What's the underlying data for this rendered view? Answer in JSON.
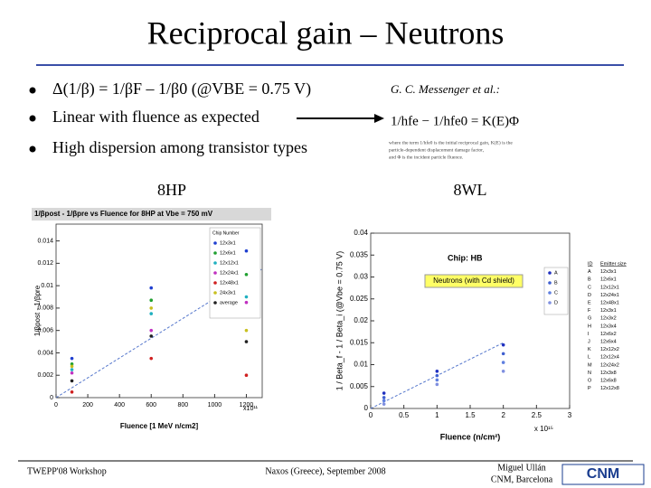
{
  "header": {
    "title": "Reciprocal gain – Neutrons"
  },
  "bullets": [
    "Δ(1/β) = 1/βF – 1/β0  (@VBE = 0.75 V)",
    "Linear with fluence as expected",
    "High dispersion among transistor types"
  ],
  "citation": {
    "author": "G. C. Messenger et al.:",
    "formula": "1/hfe − 1/hfe0 = K(E)Φ",
    "caption": [
      "where the term 1/hfe0 is the initial reciprocal gain, K(E) is the",
      "particle-dependent displacement damage factor,",
      "and Φ is the incident particle fluence."
    ]
  },
  "panel_labels": [
    "8HP",
    "8WL"
  ],
  "chart_data": [
    {
      "type": "scatter",
      "title": "1/βpost - 1/βpre vs Fluence for 8HP at Vbe = 750 mV",
      "xlabel": "Fluence [1 MeV n/cm2]",
      "ylabel": "1/βpost - 1/βpre",
      "x_exponent": "x10¹¹",
      "xlim": [
        0,
        1300
      ],
      "ylim": [
        0,
        0.0155
      ],
      "xticks": [
        0,
        200,
        400,
        600,
        800,
        1000,
        1200
      ],
      "yticks": [
        0,
        0.002,
        0.004,
        0.006,
        0.008,
        0.01,
        0.012,
        0.014
      ],
      "legend_title": "Chip Number",
      "series": [
        {
          "name": "12x3x1",
          "color": "#1f3fd0",
          "x": [
            100,
            600,
            1200
          ],
          "values": [
            0.0035,
            0.0098,
            0.0131
          ]
        },
        {
          "name": "12x6x1",
          "color": "#20a030",
          "x": [
            100,
            600,
            1200
          ],
          "values": [
            0.003,
            0.0087,
            0.011
          ]
        },
        {
          "name": "12x12x1",
          "color": "#20b0c0",
          "x": [
            100,
            600,
            1200
          ],
          "values": [
            0.0025,
            0.0075,
            0.009
          ]
        },
        {
          "name": "12x24x1",
          "color": "#c030c0",
          "x": [
            100,
            600,
            1200
          ],
          "values": [
            0.0022,
            0.006,
            0.0085
          ]
        },
        {
          "name": "12x48x1",
          "color": "#d02020",
          "x": [
            100,
            600,
            1200
          ],
          "values": [
            0.0005,
            0.0035,
            0.002
          ]
        },
        {
          "name": "24x3x1",
          "color": "#c8c020",
          "x": [
            100,
            600,
            1200
          ],
          "values": [
            0.0028,
            0.008,
            0.006
          ]
        },
        {
          "name": "average",
          "color": "#202020",
          "x": [
            100,
            600,
            1200
          ],
          "values": [
            0.0015,
            0.0055,
            0.005
          ]
        }
      ],
      "fit": {
        "x": [
          0,
          1300
        ],
        "values": [
          0,
          0.0115
        ]
      }
    },
    {
      "type": "scatter",
      "title": "Chip: HB",
      "xlabel": "Fluence (n/cm²)",
      "ylabel": "1 / Beta_f - 1 / Beta_i (@Vbe = 0.75 V)",
      "x_exponent": "x 10¹⁵",
      "xlim": [
        0,
        3
      ],
      "ylim": [
        0,
        0.04
      ],
      "xticks": [
        0,
        0.5,
        1,
        1.5,
        2,
        2.5,
        3
      ],
      "yticks": [
        0,
        0.005,
        0.01,
        0.015,
        0.02,
        0.025,
        0.03,
        0.035,
        0.04
      ],
      "annotation": "Neutrons (with Cd shield)",
      "series": [
        {
          "name": "A",
          "color": "#2030c0",
          "x": [
            0.2,
            1,
            2
          ],
          "values": [
            0.0035,
            0.0085,
            0.0145
          ]
        },
        {
          "name": "B",
          "color": "#4060d0",
          "x": [
            0.2,
            1,
            2
          ],
          "values": [
            0.0025,
            0.0075,
            0.0125
          ]
        },
        {
          "name": "C",
          "color": "#6080e0",
          "x": [
            0.2,
            1,
            2
          ],
          "values": [
            0.0018,
            0.0065,
            0.0105
          ]
        },
        {
          "name": "D",
          "color": "#8090e0",
          "x": [
            0.2,
            1,
            2
          ],
          "values": [
            0.001,
            0.0055,
            0.0085
          ]
        }
      ],
      "fit": {
        "x": [
          0,
          2
        ],
        "values": [
          0,
          0.015
        ]
      },
      "legend_table": {
        "header": [
          "ID",
          "Emitter size"
        ],
        "rows": [
          [
            "A",
            "12x3x1"
          ],
          [
            "B",
            "12x6x1"
          ],
          [
            "C",
            "12x12x1"
          ],
          [
            "D",
            "12x24x1"
          ],
          [
            "E",
            "12x48x1"
          ],
          [
            "F",
            "12x3x1"
          ],
          [
            "G",
            "12x3x2"
          ],
          [
            "H",
            "12x3x4"
          ],
          [
            "I",
            "12x6x2"
          ],
          [
            "J",
            "12x6x4"
          ],
          [
            "K",
            "12x12x2"
          ],
          [
            "L",
            "12x12x4"
          ],
          [
            "M",
            "12x24x2"
          ],
          [
            "N",
            "12x3x8"
          ],
          [
            "O",
            "12x6x8"
          ],
          [
            "P",
            "12x12x8"
          ]
        ]
      }
    }
  ],
  "footer": {
    "event": "TWEPP'08 Workshop",
    "place": "Naxos (Greece), September 2008",
    "author": "Miguel Ullán",
    "affiliation": "CNM, Barcelona",
    "logo": "CNM"
  }
}
